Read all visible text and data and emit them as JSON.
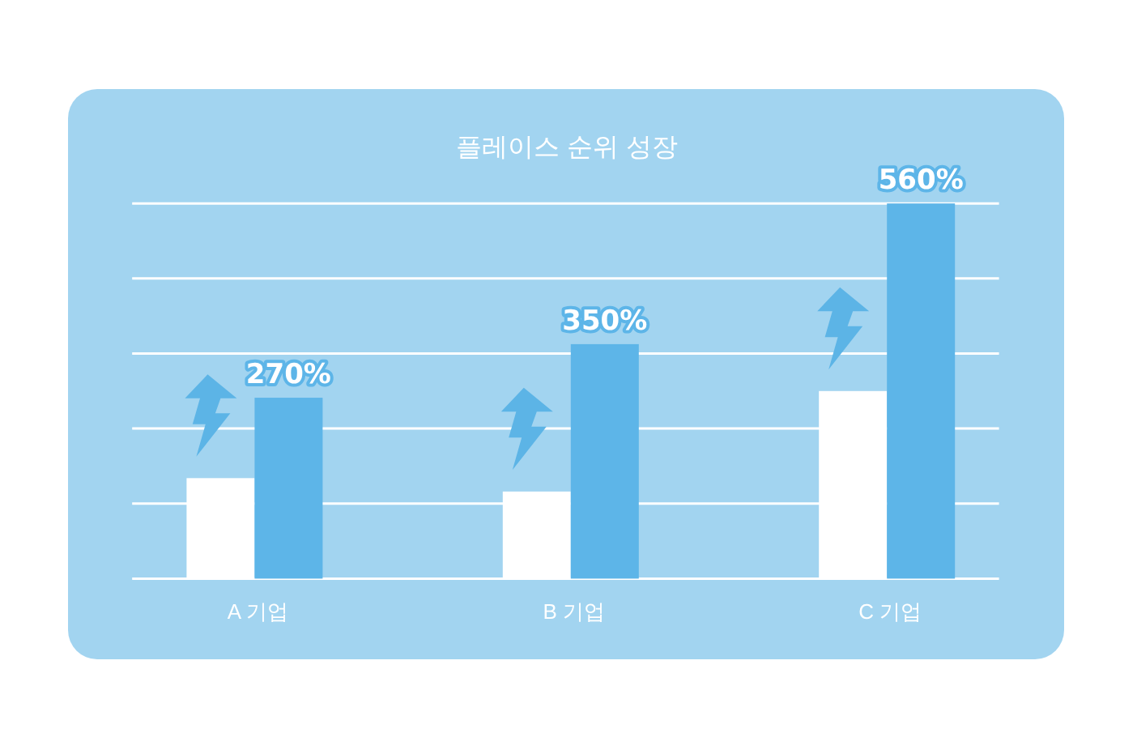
{
  "chart_data": {
    "type": "bar",
    "title": "플레이스 순위 성장",
    "categories": [
      "A 기업",
      "B 기업",
      "C 기업"
    ],
    "grid": "y",
    "series": [
      {
        "color": "#ffffff",
        "values": [
          150,
          130,
          280
        ]
      },
      {
        "color": "#5db5e8",
        "values": [
          270,
          350,
          560
        ],
        "value_labels": [
          "270%",
          "350%",
          "560%"
        ]
      }
    ]
  }
}
